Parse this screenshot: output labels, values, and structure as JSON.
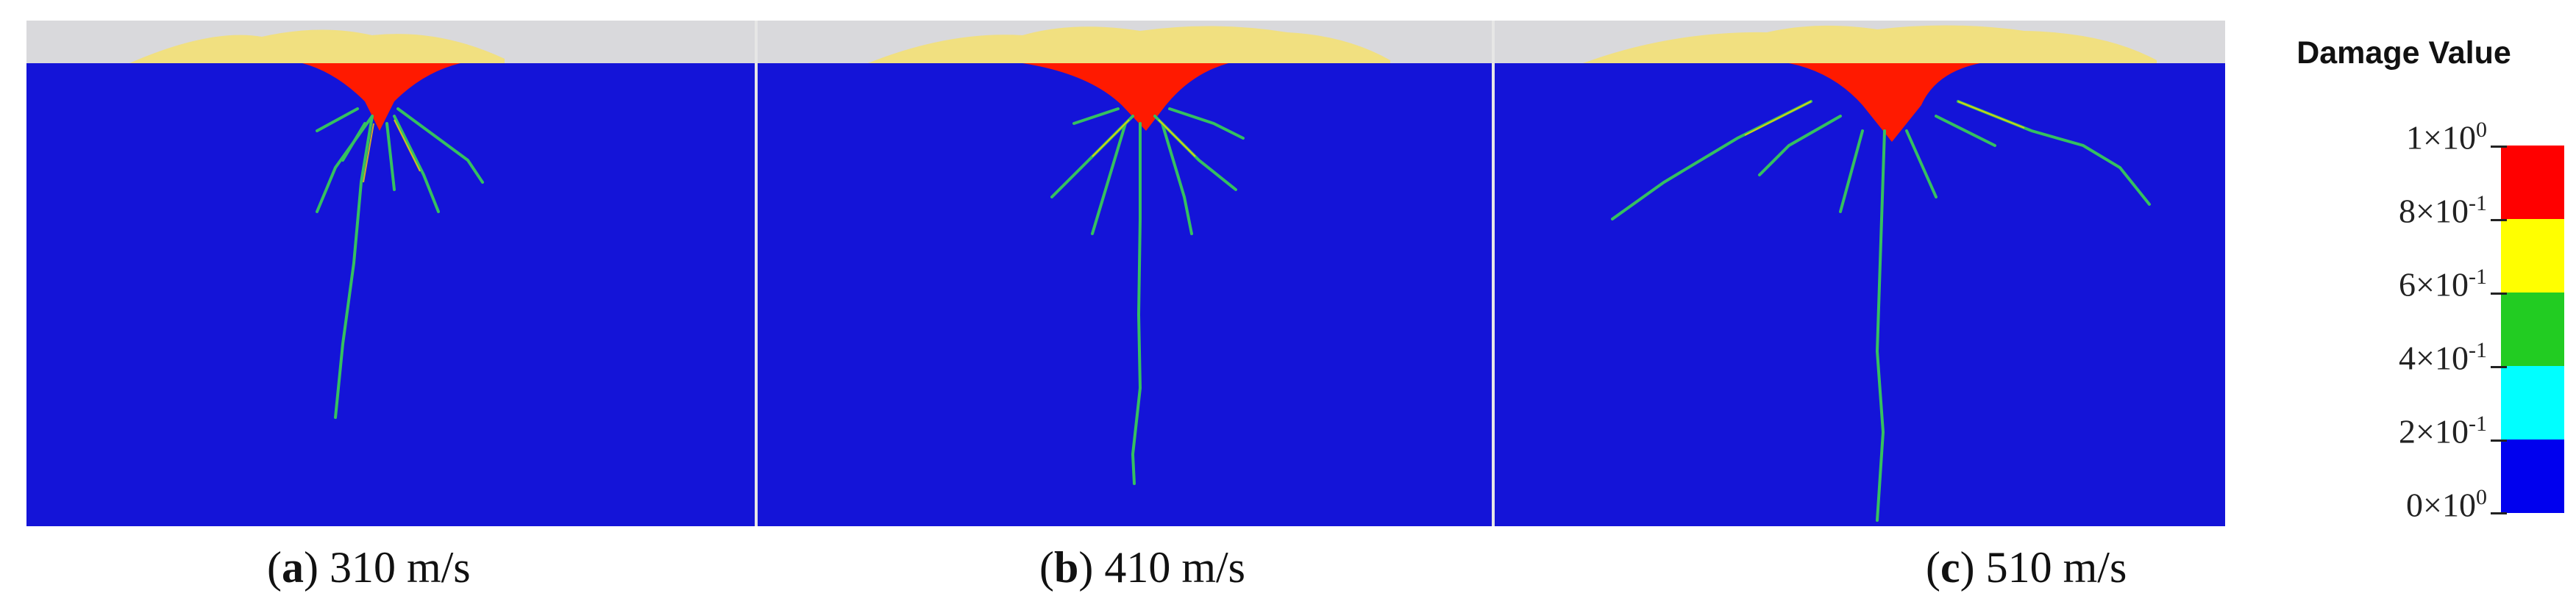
{
  "panels": [
    {
      "letter": "a",
      "caption": "310 m/s"
    },
    {
      "letter": "b",
      "caption": "410 m/s"
    },
    {
      "letter": "c",
      "caption": "510 m/s"
    }
  ],
  "legend": {
    "title": "Damage Value",
    "labels": [
      {
        "mantissa": "1×10",
        "exp": "0"
      },
      {
        "mantissa": "8×10",
        "exp": "-1"
      },
      {
        "mantissa": "6×10",
        "exp": "-1"
      },
      {
        "mantissa": "4×10",
        "exp": "-1"
      },
      {
        "mantissa": "2×10",
        "exp": "-1"
      },
      {
        "mantissa": "0×10",
        "exp": "0"
      }
    ],
    "colors": [
      "#ff0000",
      "#ffff00",
      "#22cc22",
      "#00ffff",
      "#0000ee"
    ]
  },
  "colors": {
    "background_material": "#1414d8",
    "surface_layer": "#d9d9dc",
    "debris": "#f5e070",
    "crater": "#ff1a00",
    "crack": "#35c060",
    "crack_halo": "#ffd200"
  }
}
